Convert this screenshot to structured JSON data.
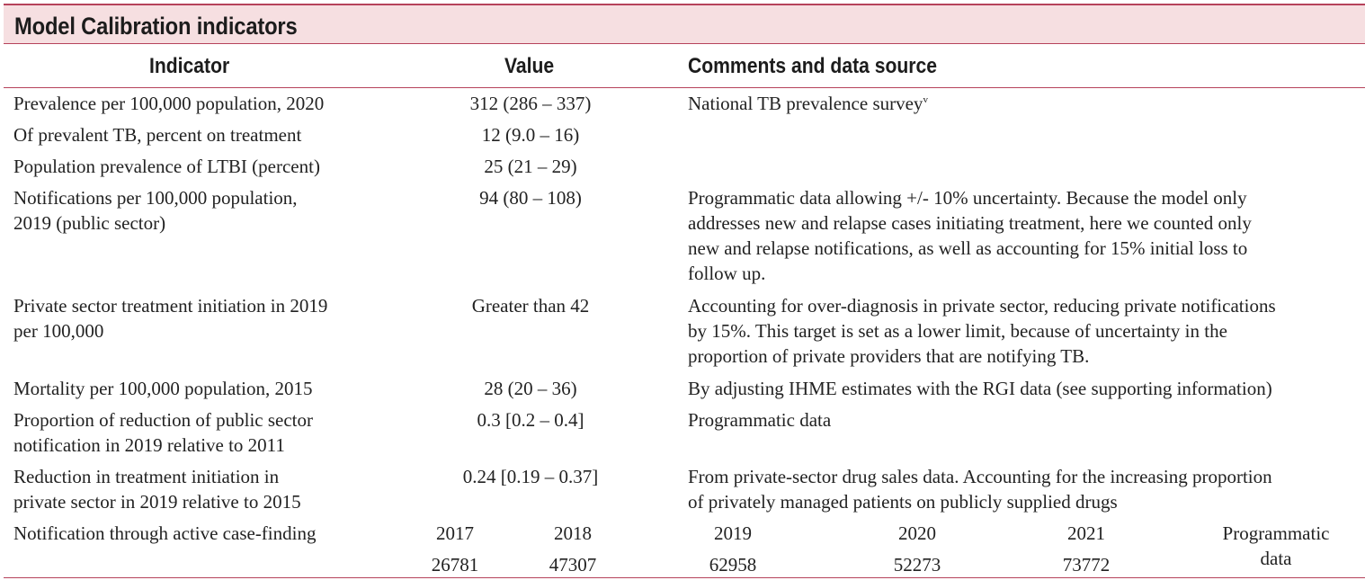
{
  "title": "Model Calibration indicators",
  "headers": {
    "indicator": "Indicator",
    "value": "Value",
    "comments": "Comments and data source"
  },
  "rows": [
    {
      "indicator": [
        "Prevalence per 100,000 population, 2020"
      ],
      "value": "312 (286 – 337)",
      "comments": [
        "National TB prevalence survey"
      ],
      "comment_sup": "v"
    },
    {
      "indicator": [
        "Of prevalent TB, percent on treatment"
      ],
      "value": "12 (9.0 – 16)",
      "comments": []
    },
    {
      "indicator": [
        "Population prevalence of LTBI (percent)"
      ],
      "value": "25 (21 – 29)",
      "comments": []
    },
    {
      "indicator": [
        "Notifications per 100,000 population,",
        "2019 (public sector)"
      ],
      "value": "94 (80 – 108)",
      "comments": [
        "Programmatic data allowing +/- 10% uncertainty. Because the model only",
        "addresses new and relapse cases initiating treatment, here we counted only",
        "new and relapse notifications, as well as accounting for 15% initial loss to",
        "follow up."
      ]
    },
    {
      "indicator": [
        "Private sector treatment initiation in 2019",
        "per 100,000"
      ],
      "value": "Greater than 42",
      "comments": [
        "Accounting for over-diagnosis in private sector, reducing private notifications",
        "by 15%. This target is set as a lower limit, because of uncertainty in the",
        "proportion of private providers that are notifying TB."
      ]
    },
    {
      "indicator": [
        "Mortality per 100,000 population, 2015"
      ],
      "value": "28 (20 – 36)",
      "comments": [
        "By adjusting IHME estimates with the RGI data (see supporting information)"
      ]
    },
    {
      "indicator": [
        "Proportion of reduction of public sector",
        "notification in 2019 relative to 2011"
      ],
      "value": "0.3 [0.2 – 0.4]",
      "comments": [
        "Programmatic data"
      ]
    },
    {
      "indicator": [
        "Reduction in treatment initiation in",
        "private sector in 2019 relative to 2015"
      ],
      "value": "0.24 [0.19 – 0.37]",
      "comments": [
        "From private-sector drug sales data. Accounting for the increasing proportion",
        "of privately managed patients on publicly supplied drugs"
      ]
    }
  ],
  "acf_row": {
    "indicator": "Notification through active case-finding",
    "years": [
      "2017",
      "2018",
      "2019",
      "2020",
      "2021"
    ],
    "counts": [
      "26781",
      "47307",
      "62958",
      "52273",
      "73772"
    ],
    "source": [
      "Programmatic",
      "data"
    ]
  },
  "colors": {
    "accent": "#b6435b",
    "title_background": "#f6dfe1"
  }
}
